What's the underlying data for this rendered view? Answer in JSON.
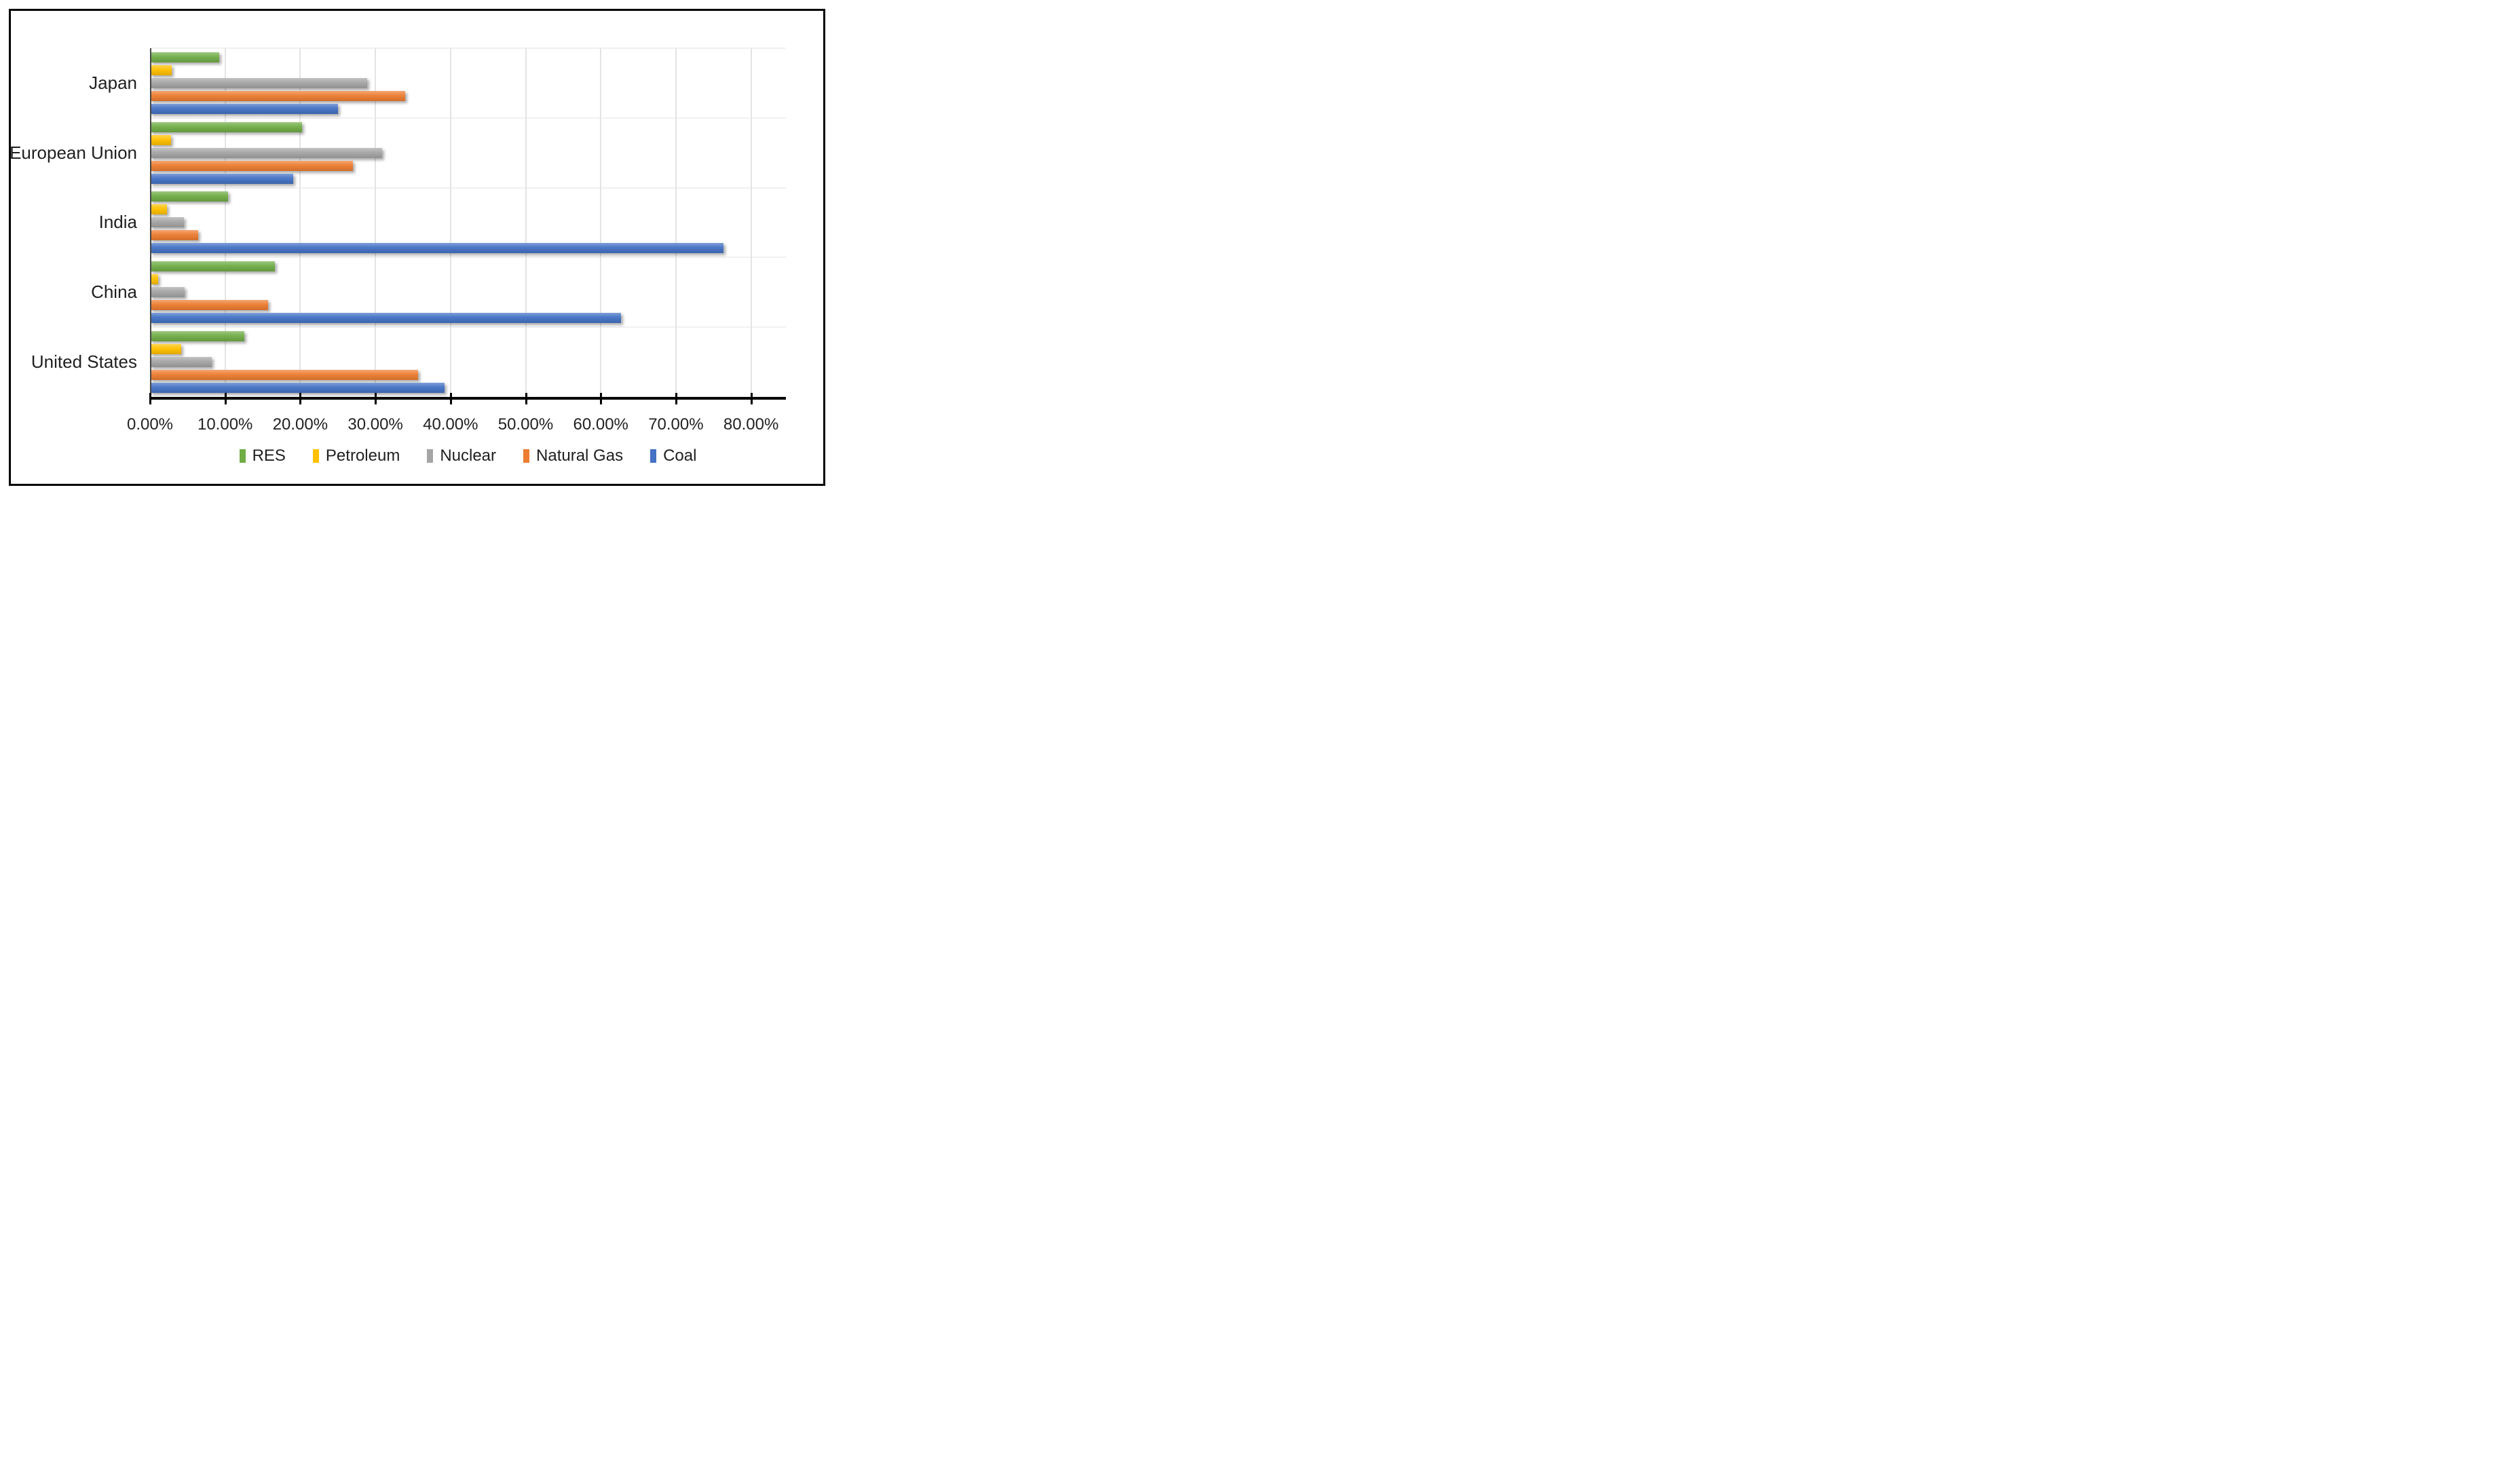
{
  "chart_data": {
    "type": "bar",
    "orientation": "horizontal",
    "unit": "%",
    "categories": [
      "Japan",
      "European Union",
      "India",
      "China",
      "United States"
    ],
    "series": [
      {
        "name": "RES",
        "color": "#70AD47",
        "values": [
          9.2,
          20.2,
          10.4,
          16.6,
          12.6
        ]
      },
      {
        "name": "Petroleum",
        "color": "#FFC000",
        "values": [
          2.9,
          2.8,
          2.3,
          1.1,
          4.2
        ]
      },
      {
        "name": "Nuclear",
        "color": "#A5A5A5",
        "values": [
          28.9,
          30.9,
          4.5,
          4.6,
          8.2
        ]
      },
      {
        "name": "Natural Gas",
        "color": "#ED7D31",
        "values": [
          34.0,
          27.0,
          6.4,
          15.7,
          35.7
        ]
      },
      {
        "name": "Coal",
        "color": "#4472C4",
        "values": [
          25.0,
          19.1,
          76.3,
          62.7,
          39.2
        ]
      }
    ],
    "x_axis": {
      "tick_labels": [
        "0.00%",
        "10.00%",
        "20.00%",
        "30.00%",
        "40.00%",
        "50.00%",
        "60.00%",
        "70.00%",
        "80.00%"
      ],
      "min": 0,
      "max_tick": 80,
      "tick_interval": 10
    },
    "legend": {
      "position": "bottom",
      "entries": [
        "RES",
        "Petroleum",
        "Nuclear",
        "Natural Gas",
        "Coal"
      ]
    },
    "grid": "vertical-major"
  }
}
